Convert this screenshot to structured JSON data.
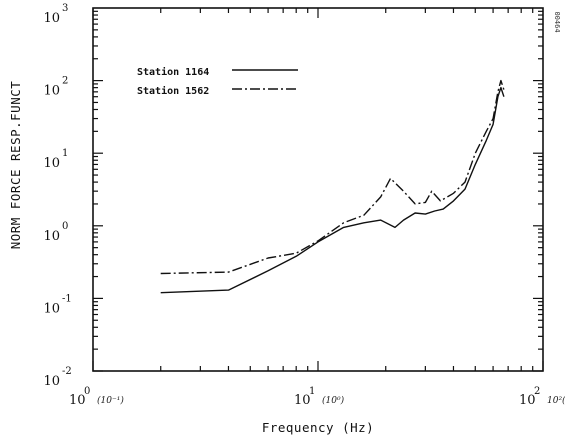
{
  "chart_data": {
    "type": "line",
    "xlabel": "Frequency (Hz)",
    "ylabel": "NORM FORCE RESP.FUNCT",
    "x_scale": "log",
    "y_scale": "log",
    "xlim": [
      1,
      100
    ],
    "ylim": [
      0.01,
      1000
    ],
    "grid": false,
    "legend_position": "top-left",
    "x_ticks": [
      {
        "base": "10",
        "exp": "0",
        "note": "(10⁻¹)"
      },
      {
        "base": "10",
        "exp": "1",
        "note": "(10⁰)"
      },
      {
        "base": "10",
        "exp": "2",
        "note": "10²(10¹)"
      }
    ],
    "y_ticks": [
      {
        "base": "10",
        "exp": "-2"
      },
      {
        "base": "10",
        "exp": "-1"
      },
      {
        "base": "10",
        "exp": "0"
      },
      {
        "base": "10",
        "exp": "1"
      },
      {
        "base": "10",
        "exp": "2"
      },
      {
        "base": "10",
        "exp": "3"
      }
    ],
    "series": [
      {
        "name": "Station 1164",
        "style": "solid",
        "color": "#111111",
        "points": [
          [
            2.0,
            0.12
          ],
          [
            4.0,
            0.13
          ],
          [
            6.0,
            0.24
          ],
          [
            8.0,
            0.38
          ],
          [
            10.0,
            0.6
          ],
          [
            13.0,
            0.95
          ],
          [
            16.0,
            1.1
          ],
          [
            19.0,
            1.2
          ],
          [
            22.0,
            0.95
          ],
          [
            24.0,
            1.2
          ],
          [
            27.0,
            1.5
          ],
          [
            30.0,
            1.45
          ],
          [
            33.0,
            1.6
          ],
          [
            36.0,
            1.7
          ],
          [
            40.0,
            2.2
          ],
          [
            45.0,
            3.2
          ],
          [
            50.0,
            7.0
          ],
          [
            56.0,
            15.0
          ],
          [
            60.0,
            25.0
          ],
          [
            63.0,
            60.0
          ],
          [
            65.0,
            80.0
          ],
          [
            67.0,
            60.0
          ]
        ]
      },
      {
        "name": "Station 1562",
        "style": "dashdot",
        "color": "#111111",
        "points": [
          [
            2.0,
            0.22
          ],
          [
            4.0,
            0.23
          ],
          [
            6.0,
            0.36
          ],
          [
            8.0,
            0.42
          ],
          [
            10.0,
            0.62
          ],
          [
            13.0,
            1.1
          ],
          [
            16.0,
            1.4
          ],
          [
            19.0,
            2.5
          ],
          [
            21.0,
            4.5
          ],
          [
            24.0,
            3.0
          ],
          [
            27.0,
            2.0
          ],
          [
            30.0,
            2.1
          ],
          [
            32.0,
            3.0
          ],
          [
            35.0,
            2.2
          ],
          [
            40.0,
            2.8
          ],
          [
            45.0,
            4.0
          ],
          [
            50.0,
            10.0
          ],
          [
            56.0,
            20.0
          ],
          [
            60.0,
            30.0
          ],
          [
            63.0,
            70.0
          ],
          [
            65.0,
            100.0
          ],
          [
            67.0,
            75.0
          ]
        ]
      }
    ]
  },
  "doc_id": "00464"
}
